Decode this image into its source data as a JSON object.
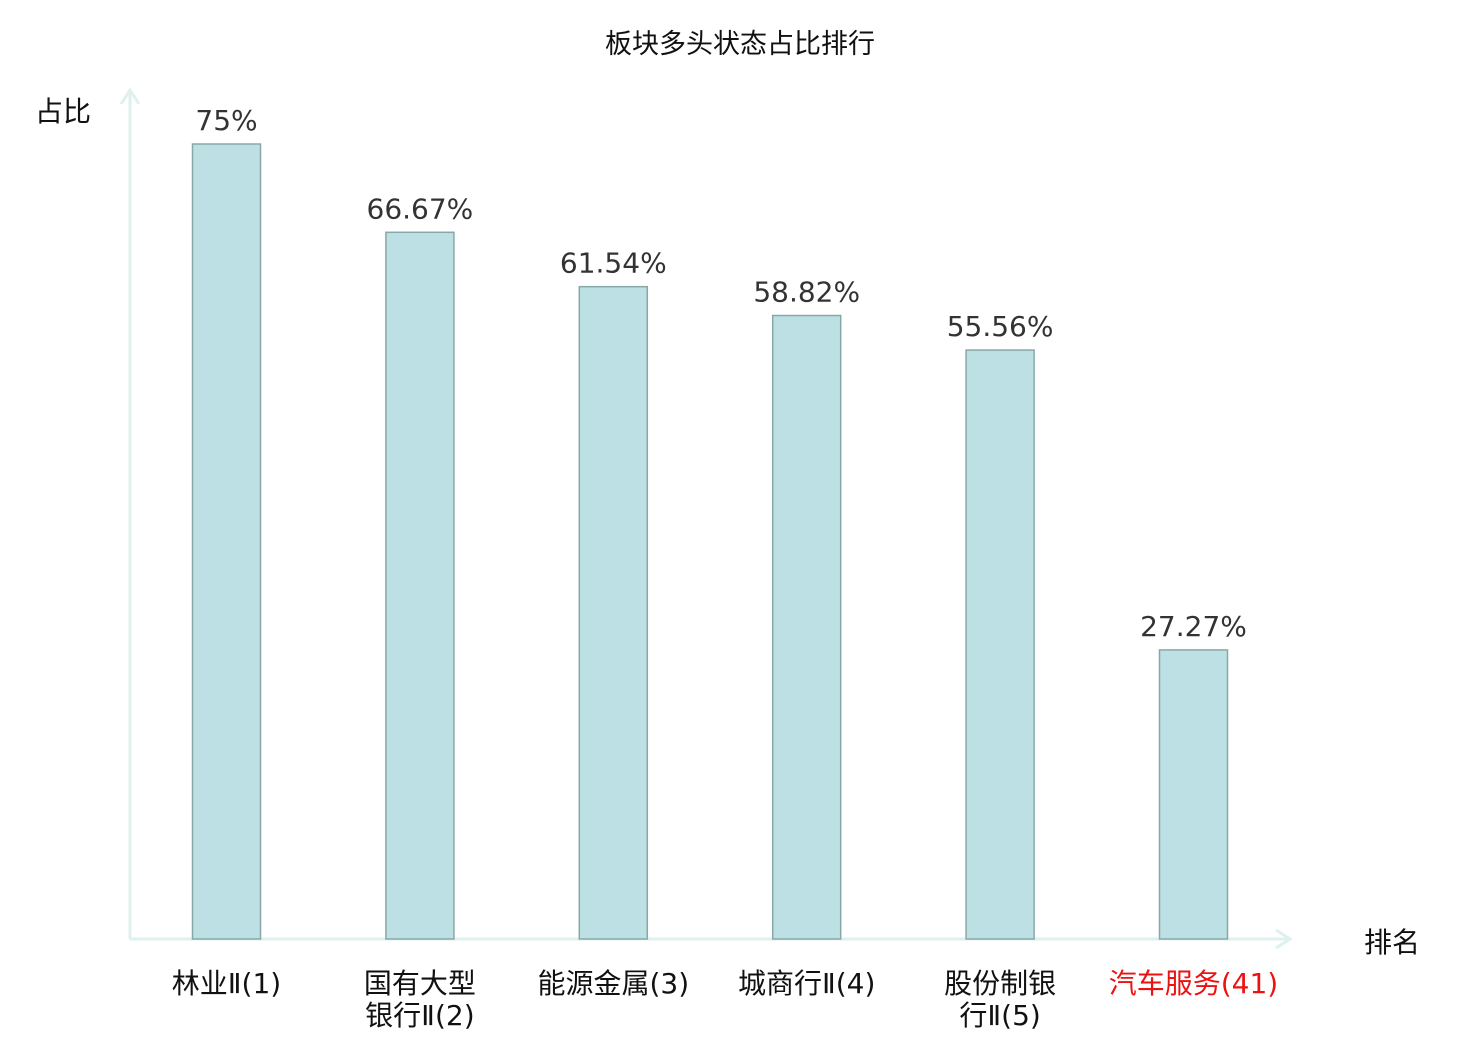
{
  "chart_data": {
    "type": "bar",
    "title": "板块多头状态占比排行",
    "xlabel": "排名",
    "ylabel": "占比",
    "categories": [
      [
        "林业Ⅱ(1)"
      ],
      [
        "国有大型",
        "银行Ⅱ(2)"
      ],
      [
        "能源金属(3)"
      ],
      [
        "城商行Ⅱ(4)"
      ],
      [
        "股份制银",
        "行Ⅱ(5)"
      ],
      [
        "汽车服务(41)"
      ]
    ],
    "values": [
      75,
      66.67,
      61.54,
      58.82,
      55.56,
      27.27
    ],
    "value_labels": [
      "75%",
      "66.67%",
      "61.54%",
      "58.82%",
      "55.56%",
      "27.27%"
    ],
    "highlight_index": 5,
    "grid": false,
    "ylim": [
      0,
      80
    ]
  },
  "colors": {
    "bar_fill": "#bce0e3",
    "bar_stroke": "#88a8a8",
    "axis": "#dff1ef",
    "text": "#333333",
    "highlight": "#ee1111"
  }
}
